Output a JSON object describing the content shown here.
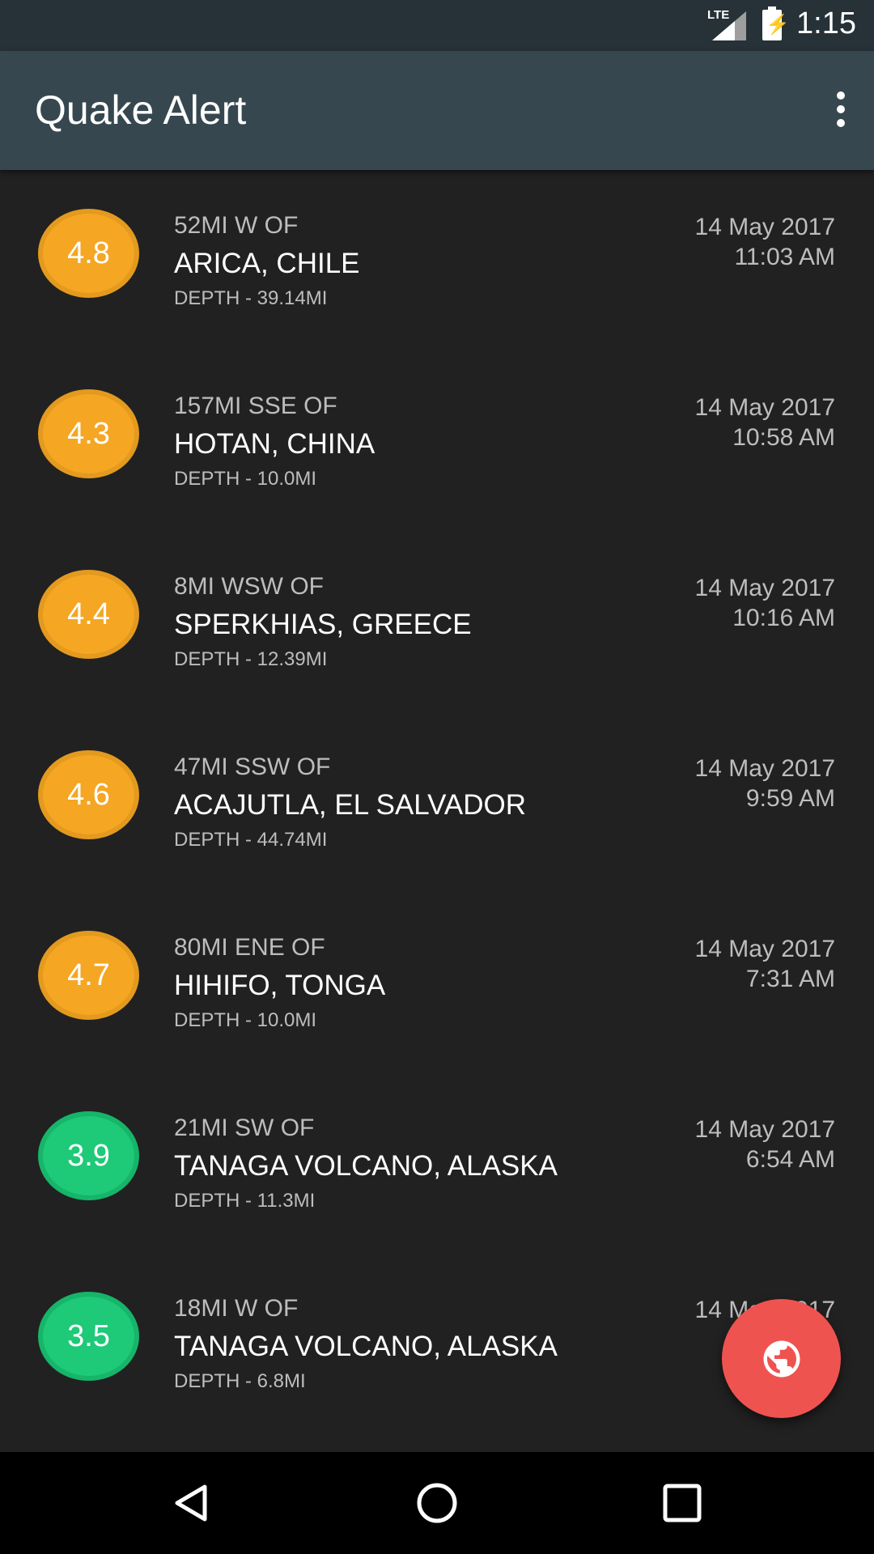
{
  "status_bar": {
    "time": "1:15",
    "network": "LTE",
    "icons": [
      "signal-icon",
      "battery-charging-icon"
    ]
  },
  "toolbar": {
    "title": "Quake Alert",
    "menu_icon": "more-vert-icon"
  },
  "colors": {
    "toolbar": "#37474f",
    "status_bar": "#263238",
    "background": "#212121",
    "moderate": "#f5a623",
    "light": "#1ec978",
    "fab": "#ef5350"
  },
  "quakes": [
    {
      "magnitude": "4.8",
      "level": "orange",
      "offset": "52MI W OF",
      "place": "ARICA, CHILE",
      "depth": "DEPTH - 39.14MI",
      "date": "14 May 2017",
      "time": "11:03 AM"
    },
    {
      "magnitude": "4.3",
      "level": "orange",
      "offset": "157MI SSE OF",
      "place": "HOTAN, CHINA",
      "depth": "DEPTH - 10.0MI",
      "date": "14 May 2017",
      "time": "10:58 AM"
    },
    {
      "magnitude": "4.4",
      "level": "orange",
      "offset": "8MI WSW OF",
      "place": "SPERKHIAS, GREECE",
      "depth": "DEPTH - 12.39MI",
      "date": "14 May 2017",
      "time": "10:16 AM"
    },
    {
      "magnitude": "4.6",
      "level": "orange",
      "offset": "47MI SSW OF",
      "place": "ACAJUTLA, EL SALVADOR",
      "depth": "DEPTH - 44.74MI",
      "date": "14 May 2017",
      "time": "9:59 AM"
    },
    {
      "magnitude": "4.7",
      "level": "orange",
      "offset": "80MI ENE OF",
      "place": "HIHIFO, TONGA",
      "depth": "DEPTH - 10.0MI",
      "date": "14 May 2017",
      "time": "7:31 AM"
    },
    {
      "magnitude": "3.9",
      "level": "green",
      "offset": "21MI SW OF",
      "place": "TANAGA VOLCANO, ALASKA",
      "depth": "DEPTH - 11.3MI",
      "date": "14 May 2017",
      "time": "6:54 AM"
    },
    {
      "magnitude": "3.5",
      "level": "green",
      "offset": "18MI W OF",
      "place": "TANAGA VOLCANO, ALASKA",
      "depth": "DEPTH - 6.8MI",
      "date": "14 May 2017"
    }
  ],
  "fab": {
    "icon": "globe-icon"
  },
  "nav": {
    "icons": [
      "back-icon",
      "home-icon",
      "recents-icon"
    ]
  }
}
